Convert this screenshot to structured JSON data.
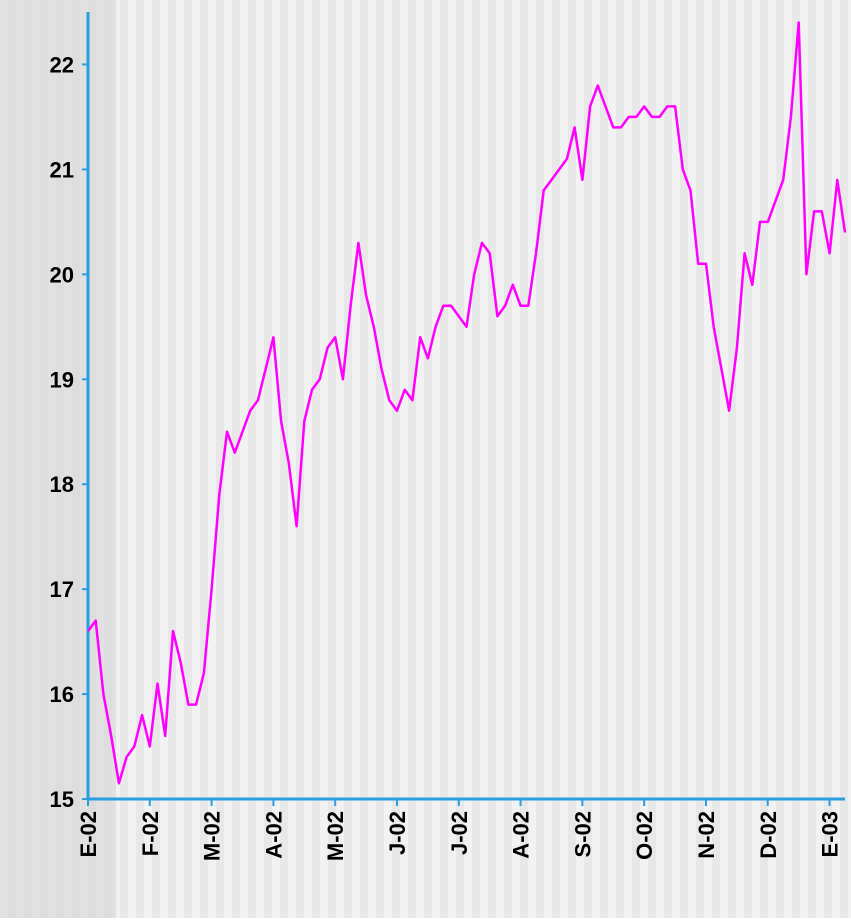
{
  "chart_data": {
    "type": "line",
    "categories": [
      "E-02",
      null,
      null,
      null,
      null,
      null,
      null,
      null,
      "F-02",
      null,
      null,
      null,
      null,
      null,
      null,
      null,
      "M-02",
      null,
      null,
      null,
      null,
      null,
      null,
      null,
      "A-02",
      null,
      null,
      null,
      null,
      null,
      null,
      null,
      "M-02",
      null,
      null,
      null,
      null,
      null,
      null,
      null,
      "J-02",
      null,
      null,
      null,
      null,
      null,
      null,
      null,
      "J-02",
      null,
      null,
      null,
      null,
      null,
      null,
      null,
      "A-02",
      null,
      null,
      null,
      null,
      null,
      null,
      null,
      "S-02",
      null,
      null,
      null,
      null,
      null,
      null,
      null,
      "O-02",
      null,
      null,
      null,
      null,
      null,
      null,
      null,
      "N-02",
      null,
      null,
      null,
      null,
      null,
      null,
      null,
      "D-02",
      null,
      null,
      null,
      null,
      null,
      null,
      null,
      "E-03",
      null,
      null
    ],
    "series": [
      {
        "color": "#ff00ff",
        "values": [
          16.6,
          16.7,
          16.0,
          15.6,
          15.15,
          15.4,
          15.5,
          15.8,
          15.5,
          16.1,
          15.6,
          16.6,
          16.3,
          15.9,
          15.9,
          16.2,
          17.0,
          17.9,
          18.5,
          18.3,
          18.5,
          18.7,
          18.8,
          19.1,
          19.4,
          18.6,
          18.2,
          17.6,
          18.6,
          18.9,
          19.0,
          19.3,
          19.4,
          19.0,
          19.7,
          20.3,
          19.8,
          19.5,
          19.1,
          18.8,
          18.7,
          18.9,
          18.8,
          19.4,
          19.2,
          19.5,
          19.7,
          19.7,
          19.6,
          19.5,
          20.0,
          20.3,
          20.2,
          19.6,
          19.7,
          19.9,
          19.7,
          19.7,
          20.2,
          20.8,
          20.9,
          21.0,
          21.1,
          21.4,
          20.9,
          21.6,
          21.8,
          21.6,
          21.4,
          21.4,
          21.5,
          21.5,
          21.6,
          21.5,
          21.5,
          21.6,
          21.6,
          21.0,
          20.8,
          20.1,
          20.1,
          19.5,
          19.1,
          18.7,
          19.3,
          20.2,
          19.9,
          20.5,
          20.5,
          20.7,
          20.9,
          21.5,
          22.4,
          20.0,
          20.6,
          20.6,
          20.2,
          20.9,
          20.4
        ]
      }
    ],
    "ylim": [
      15,
      22.5
    ],
    "yticks": [
      15,
      16,
      17,
      18,
      19,
      20,
      21,
      22
    ],
    "axis_color": "#2a9fe0"
  }
}
